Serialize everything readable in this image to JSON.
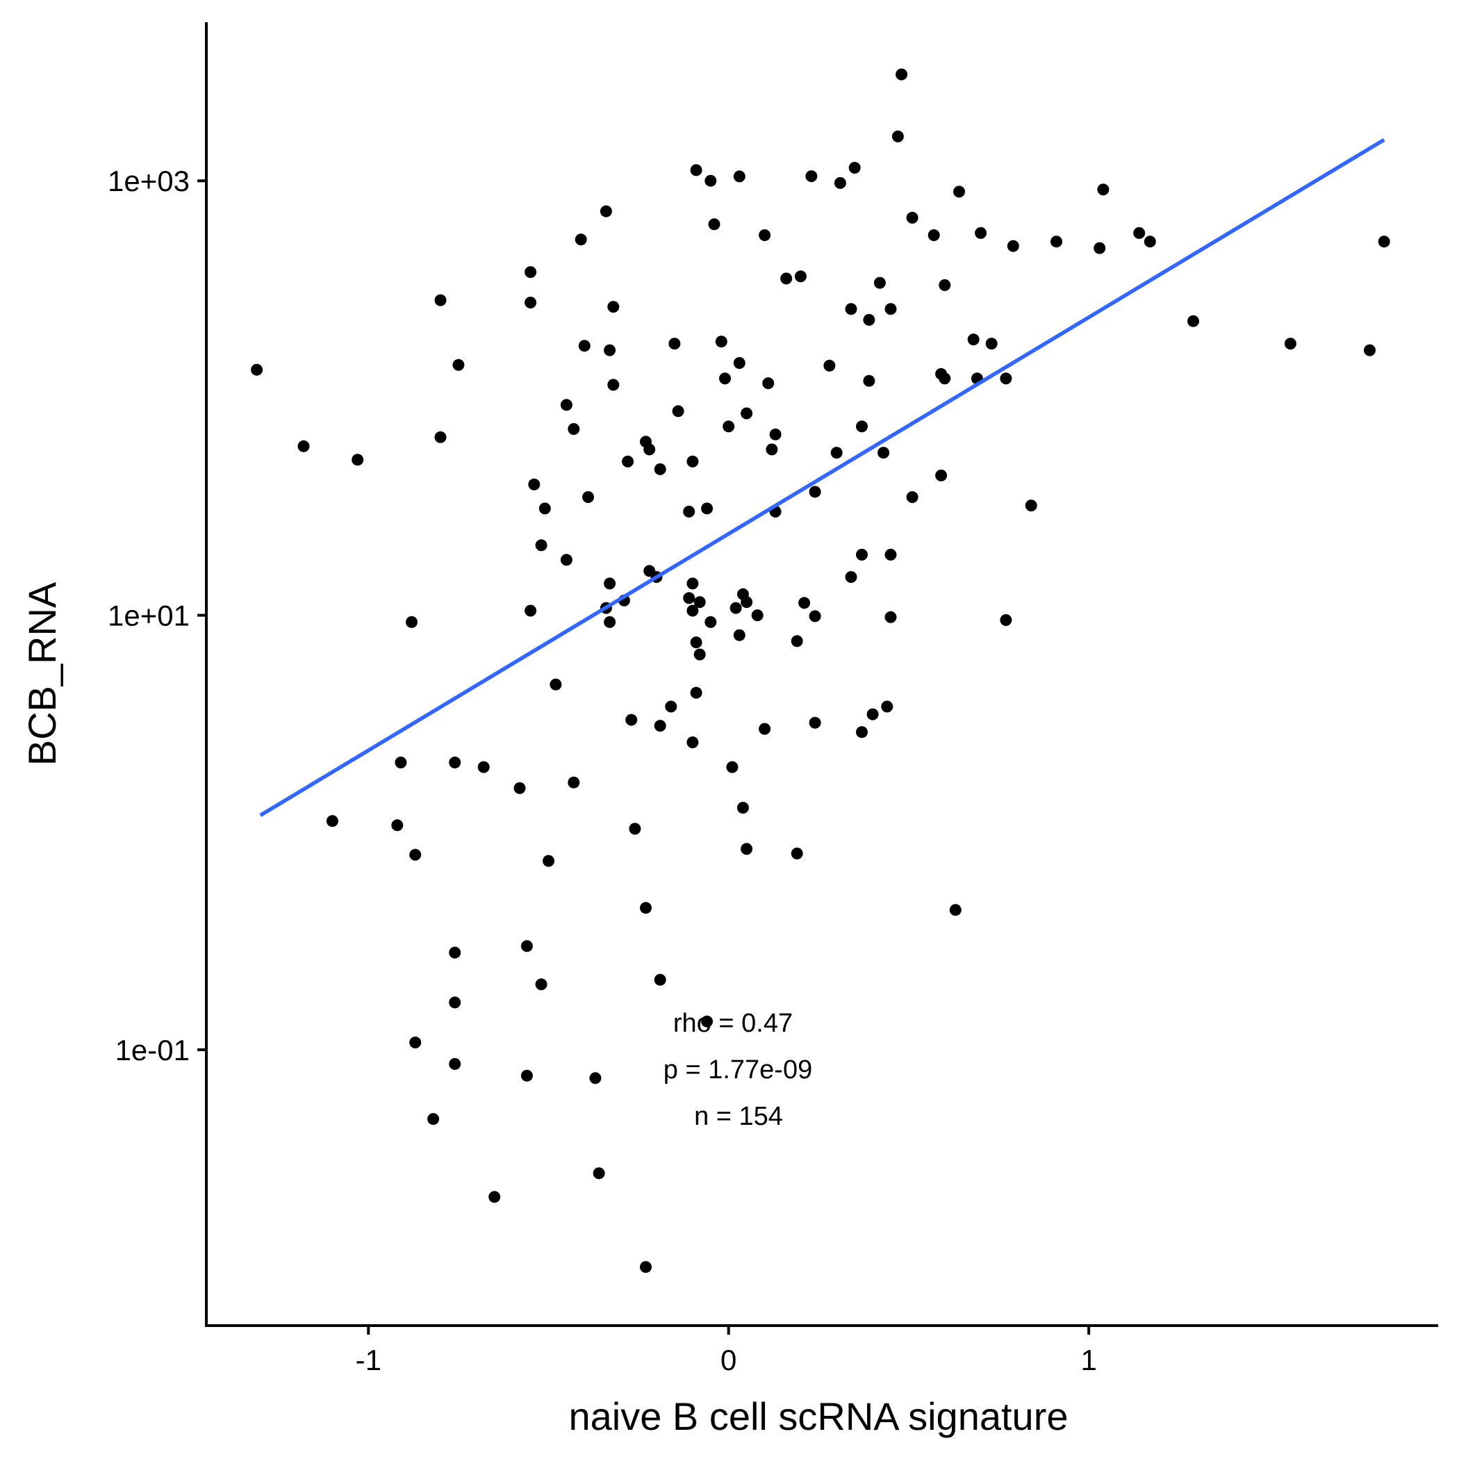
{
  "chart_data": {
    "type": "scatter",
    "title": "",
    "xlabel": "naive B cell scRNA signature",
    "ylabel": "BCB_RNA",
    "xlim": [
      -1.45,
      1.97
    ],
    "ylim_log10": [
      -2.27,
      3.73
    ],
    "y_scale": "log10",
    "grid": false,
    "x_ticks": [
      {
        "value": -1,
        "label": "-1"
      },
      {
        "value": 0,
        "label": "0"
      },
      {
        "value": 1,
        "label": "1"
      }
    ],
    "y_ticks": [
      {
        "log10": 3,
        "label": "1e+03"
      },
      {
        "log10": 1,
        "label": "1e+01"
      },
      {
        "log10": -1,
        "label": "1e-01"
      }
    ],
    "point_color": "#000000",
    "fit_color": "#3366FF",
    "fit_line": {
      "x": [
        -1.3,
        1.82
      ],
      "y": [
        1.2,
        1545
      ]
    },
    "annotations": [
      "rho = 0.47",
      "p = 1.77e-09",
      "n = 154"
    ],
    "points": [
      {
        "x": 0.48,
        "y": 3090
      },
      {
        "x": 0.47,
        "y": 1600
      },
      {
        "x": 0.03,
        "y": 1048
      },
      {
        "x": 0.23,
        "y": 1050
      },
      {
        "x": 0.57,
        "y": 562
      },
      {
        "x": 0.7,
        "y": 575
      },
      {
        "x": -0.09,
        "y": 1120
      },
      {
        "x": -0.05,
        "y": 1000
      },
      {
        "x": 0.35,
        "y": 1148
      },
      {
        "x": 0.31,
        "y": 977
      },
      {
        "x": 0.64,
        "y": 891
      },
      {
        "x": 1.04,
        "y": 912
      },
      {
        "x": -0.34,
        "y": 724
      },
      {
        "x": 0.51,
        "y": 676
      },
      {
        "x": -0.04,
        "y": 631
      },
      {
        "x": 0.1,
        "y": 562
      },
      {
        "x": -0.41,
        "y": 537
      },
      {
        "x": 0.79,
        "y": 501
      },
      {
        "x": 0.91,
        "y": 525
      },
      {
        "x": 1.03,
        "y": 490
      },
      {
        "x": 1.14,
        "y": 575
      },
      {
        "x": 1.17,
        "y": 525
      },
      {
        "x": 1.82,
        "y": 525
      },
      {
        "x": -0.55,
        "y": 380
      },
      {
        "x": 0.16,
        "y": 355
      },
      {
        "x": 0.2,
        "y": 363
      },
      {
        "x": 0.42,
        "y": 339
      },
      {
        "x": 0.6,
        "y": 331
      },
      {
        "x": -0.8,
        "y": 282
      },
      {
        "x": -0.55,
        "y": 275
      },
      {
        "x": -0.32,
        "y": 263
      },
      {
        "x": 0.34,
        "y": 257
      },
      {
        "x": 0.45,
        "y": 257
      },
      {
        "x": 0.39,
        "y": 229
      },
      {
        "x": -0.4,
        "y": 174
      },
      {
        "x": -0.33,
        "y": 166
      },
      {
        "x": -0.15,
        "y": 178
      },
      {
        "x": -0.02,
        "y": 182
      },
      {
        "x": 0.68,
        "y": 186
      },
      {
        "x": 0.73,
        "y": 178
      },
      {
        "x": 1.29,
        "y": 226
      },
      {
        "x": 1.56,
        "y": 178
      },
      {
        "x": 1.78,
        "y": 166
      },
      {
        "x": -1.31,
        "y": 135
      },
      {
        "x": -0.75,
        "y": 142
      },
      {
        "x": 0.03,
        "y": 145
      },
      {
        "x": 0.28,
        "y": 141
      },
      {
        "x": 0.59,
        "y": 129
      },
      {
        "x": 0.6,
        "y": 123
      },
      {
        "x": 0.69,
        "y": 123
      },
      {
        "x": 0.77,
        "y": 123
      },
      {
        "x": -0.32,
        "y": 115
      },
      {
        "x": -0.01,
        "y": 123
      },
      {
        "x": 0.11,
        "y": 117
      },
      {
        "x": 0.39,
        "y": 120
      },
      {
        "x": -0.45,
        "y": 93
      },
      {
        "x": -0.14,
        "y": 87
      },
      {
        "x": 0.05,
        "y": 85
      },
      {
        "x": 0.37,
        "y": 74
      },
      {
        "x": -0.43,
        "y": 72
      },
      {
        "x": 0.0,
        "y": 74
      },
      {
        "x": 0.13,
        "y": 68
      },
      {
        "x": -0.8,
        "y": 66
      },
      {
        "x": -0.23,
        "y": 63
      },
      {
        "x": -0.22,
        "y": 58
      },
      {
        "x": 0.12,
        "y": 58
      },
      {
        "x": 0.3,
        "y": 56
      },
      {
        "x": 0.43,
        "y": 56
      },
      {
        "x": -1.18,
        "y": 60
      },
      {
        "x": -1.03,
        "y": 52
      },
      {
        "x": -0.28,
        "y": 51
      },
      {
        "x": -0.19,
        "y": 47
      },
      {
        "x": -0.1,
        "y": 51
      },
      {
        "x": 0.59,
        "y": 44
      },
      {
        "x": -0.54,
        "y": 40
      },
      {
        "x": -0.39,
        "y": 35
      },
      {
        "x": 0.24,
        "y": 37
      },
      {
        "x": 0.51,
        "y": 35
      },
      {
        "x": -0.51,
        "y": 31
      },
      {
        "x": -0.11,
        "y": 30
      },
      {
        "x": -0.06,
        "y": 31
      },
      {
        "x": 0.13,
        "y": 30
      },
      {
        "x": 0.84,
        "y": 32
      },
      {
        "x": -0.52,
        "y": 21
      },
      {
        "x": -0.45,
        "y": 18
      },
      {
        "x": 0.37,
        "y": 19
      },
      {
        "x": 0.45,
        "y": 19
      },
      {
        "x": -0.22,
        "y": 16
      },
      {
        "x": -0.2,
        "y": 15
      },
      {
        "x": 0.34,
        "y": 15
      },
      {
        "x": -0.33,
        "y": 14
      },
      {
        "x": -0.1,
        "y": 14
      },
      {
        "x": -0.11,
        "y": 12
      },
      {
        "x": 0.04,
        "y": 12.5
      },
      {
        "x": -0.29,
        "y": 11.7
      },
      {
        "x": -0.08,
        "y": 11.5
      },
      {
        "x": 0.05,
        "y": 11.5
      },
      {
        "x": -0.55,
        "y": 10.5
      },
      {
        "x": -0.34,
        "y": 10.8
      },
      {
        "x": -0.1,
        "y": 10.5
      },
      {
        "x": 0.02,
        "y": 10.8
      },
      {
        "x": 0.08,
        "y": 10.0
      },
      {
        "x": 0.21,
        "y": 11.4
      },
      {
        "x": 0.24,
        "y": 9.9
      },
      {
        "x": 0.45,
        "y": 9.8
      },
      {
        "x": -0.88,
        "y": 9.3
      },
      {
        "x": -0.33,
        "y": 9.3
      },
      {
        "x": -0.05,
        "y": 9.3
      },
      {
        "x": 0.77,
        "y": 9.5
      },
      {
        "x": 0.03,
        "y": 8.1
      },
      {
        "x": -0.09,
        "y": 7.5
      },
      {
        "x": 0.19,
        "y": 7.6
      },
      {
        "x": -0.08,
        "y": 6.6
      },
      {
        "x": -0.48,
        "y": 4.8
      },
      {
        "x": -0.09,
        "y": 4.4
      },
      {
        "x": -0.16,
        "y": 3.8
      },
      {
        "x": 0.44,
        "y": 3.8
      },
      {
        "x": -0.27,
        "y": 3.3
      },
      {
        "x": -0.19,
        "y": 3.1
      },
      {
        "x": 0.1,
        "y": 3.0
      },
      {
        "x": 0.24,
        "y": 3.2
      },
      {
        "x": 0.4,
        "y": 3.5
      },
      {
        "x": 0.37,
        "y": 2.9
      },
      {
        "x": -0.1,
        "y": 2.6
      },
      {
        "x": -0.91,
        "y": 2.1
      },
      {
        "x": -0.76,
        "y": 2.1
      },
      {
        "x": -0.68,
        "y": 2.0
      },
      {
        "x": 0.01,
        "y": 2.0
      },
      {
        "x": -0.43,
        "y": 1.7
      },
      {
        "x": -0.58,
        "y": 1.6
      },
      {
        "x": 0.04,
        "y": 1.3
      },
      {
        "x": -1.1,
        "y": 1.13
      },
      {
        "x": -0.92,
        "y": 1.08
      },
      {
        "x": -0.26,
        "y": 1.04
      },
      {
        "x": -0.87,
        "y": 0.79
      },
      {
        "x": -0.5,
        "y": 0.74
      },
      {
        "x": 0.05,
        "y": 0.84
      },
      {
        "x": 0.19,
        "y": 0.8
      },
      {
        "x": -0.23,
        "y": 0.45
      },
      {
        "x": 0.63,
        "y": 0.44
      },
      {
        "x": -0.76,
        "y": 0.28
      },
      {
        "x": -0.56,
        "y": 0.3
      },
      {
        "x": -0.52,
        "y": 0.2
      },
      {
        "x": -0.19,
        "y": 0.21
      },
      {
        "x": -0.76,
        "y": 0.165
      },
      {
        "x": -0.06,
        "y": 0.135
      },
      {
        "x": -0.87,
        "y": 0.108
      },
      {
        "x": -0.76,
        "y": 0.086
      },
      {
        "x": -0.56,
        "y": 0.076
      },
      {
        "x": -0.37,
        "y": 0.074
      },
      {
        "x": -0.82,
        "y": 0.048
      },
      {
        "x": -0.36,
        "y": 0.027
      },
      {
        "x": -0.65,
        "y": 0.021
      },
      {
        "x": -0.23,
        "y": 0.01
      }
    ]
  }
}
